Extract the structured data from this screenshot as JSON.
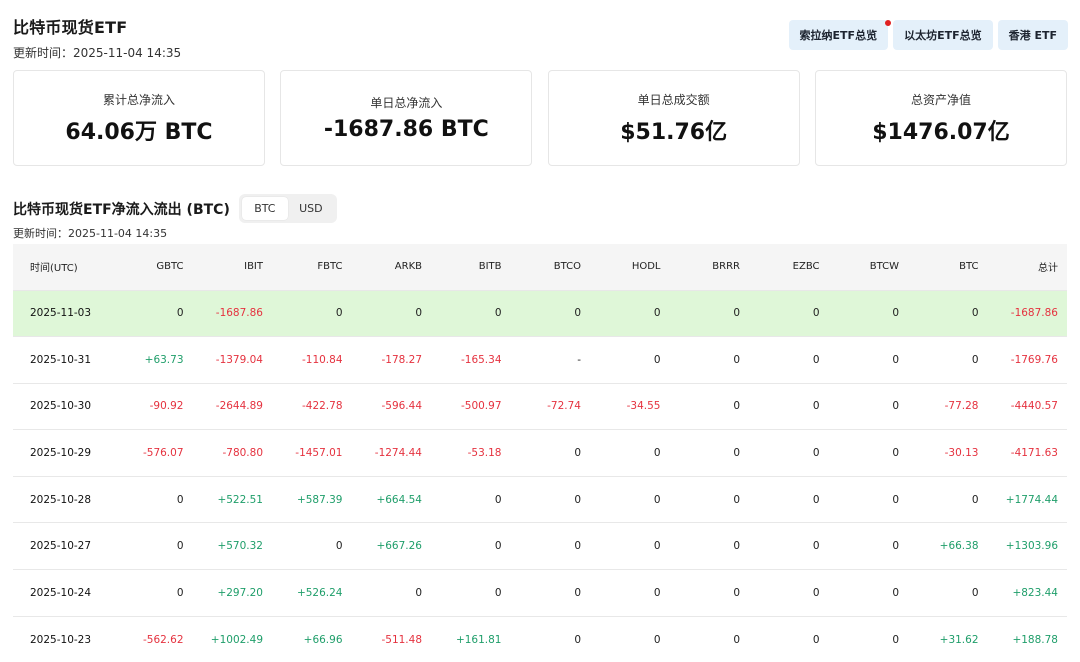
{
  "header": {
    "title": "比特币现货ETF",
    "updated": "更新时间：2025-11-04 14:35"
  },
  "nav": {
    "items": [
      "索拉纳ETF总览",
      "以太坊ETF总览",
      "香港 ETF"
    ]
  },
  "cards": [
    {
      "label": "累计总净流入",
      "value": "64.06万 BTC"
    },
    {
      "label": "单日总净流入",
      "value": "-1687.86 BTC"
    },
    {
      "label": "单日总成交额",
      "value": "$51.76亿"
    },
    {
      "label": "总资产净值",
      "value": "$1476.07亿"
    }
  ],
  "section": {
    "title": "比特币现货ETF净流入流出 (BTC)",
    "toggle": [
      "BTC",
      "USD"
    ],
    "active_toggle": "BTC",
    "updated": "更新时间：2025-11-04 14:35"
  },
  "table": {
    "columns": [
      "时间(UTC)",
      "GBTC",
      "IBIT",
      "FBTC",
      "ARKB",
      "BITB",
      "BTCO",
      "HODL",
      "BRRR",
      "EZBC",
      "BTCW",
      "BTC",
      "总计"
    ],
    "rows": [
      [
        "2025-11-03",
        "0",
        "-1687.86",
        "0",
        "0",
        "0",
        "0",
        "0",
        "0",
        "0",
        "0",
        "0",
        "-1687.86"
      ],
      [
        "2025-10-31",
        "+63.73",
        "-1379.04",
        "-110.84",
        "-178.27",
        "-165.34",
        "-",
        "0",
        "0",
        "0",
        "0",
        "0",
        "-1769.76"
      ],
      [
        "2025-10-30",
        "-90.92",
        "-2644.89",
        "-422.78",
        "-596.44",
        "-500.97",
        "-72.74",
        "-34.55",
        "0",
        "0",
        "0",
        "-77.28",
        "-4440.57"
      ],
      [
        "2025-10-29",
        "-576.07",
        "-780.80",
        "-1457.01",
        "-1274.44",
        "-53.18",
        "0",
        "0",
        "0",
        "0",
        "0",
        "-30.13",
        "-4171.63"
      ],
      [
        "2025-10-28",
        "0",
        "+522.51",
        "+587.39",
        "+664.54",
        "0",
        "0",
        "0",
        "0",
        "0",
        "0",
        "0",
        "+1774.44"
      ],
      [
        "2025-10-27",
        "0",
        "+570.32",
        "0",
        "+667.26",
        "0",
        "0",
        "0",
        "0",
        "0",
        "0",
        "+66.38",
        "+1303.96"
      ],
      [
        "2025-10-24",
        "0",
        "+297.20",
        "+526.24",
        "0",
        "0",
        "0",
        "0",
        "0",
        "0",
        "0",
        "0",
        "+823.44"
      ],
      [
        "2025-10-23",
        "-562.62",
        "+1002.49",
        "+66.96",
        "-511.48",
        "+161.81",
        "0",
        "0",
        "0",
        "0",
        "0",
        "+31.62",
        "+188.78"
      ]
    ]
  },
  "colors": {
    "negative": "#e5323f",
    "positive": "#1f9e6a",
    "highlight_row": "#dff7d8",
    "nav_bg": "#e4f0fa",
    "notification_dot": "#e02020"
  }
}
